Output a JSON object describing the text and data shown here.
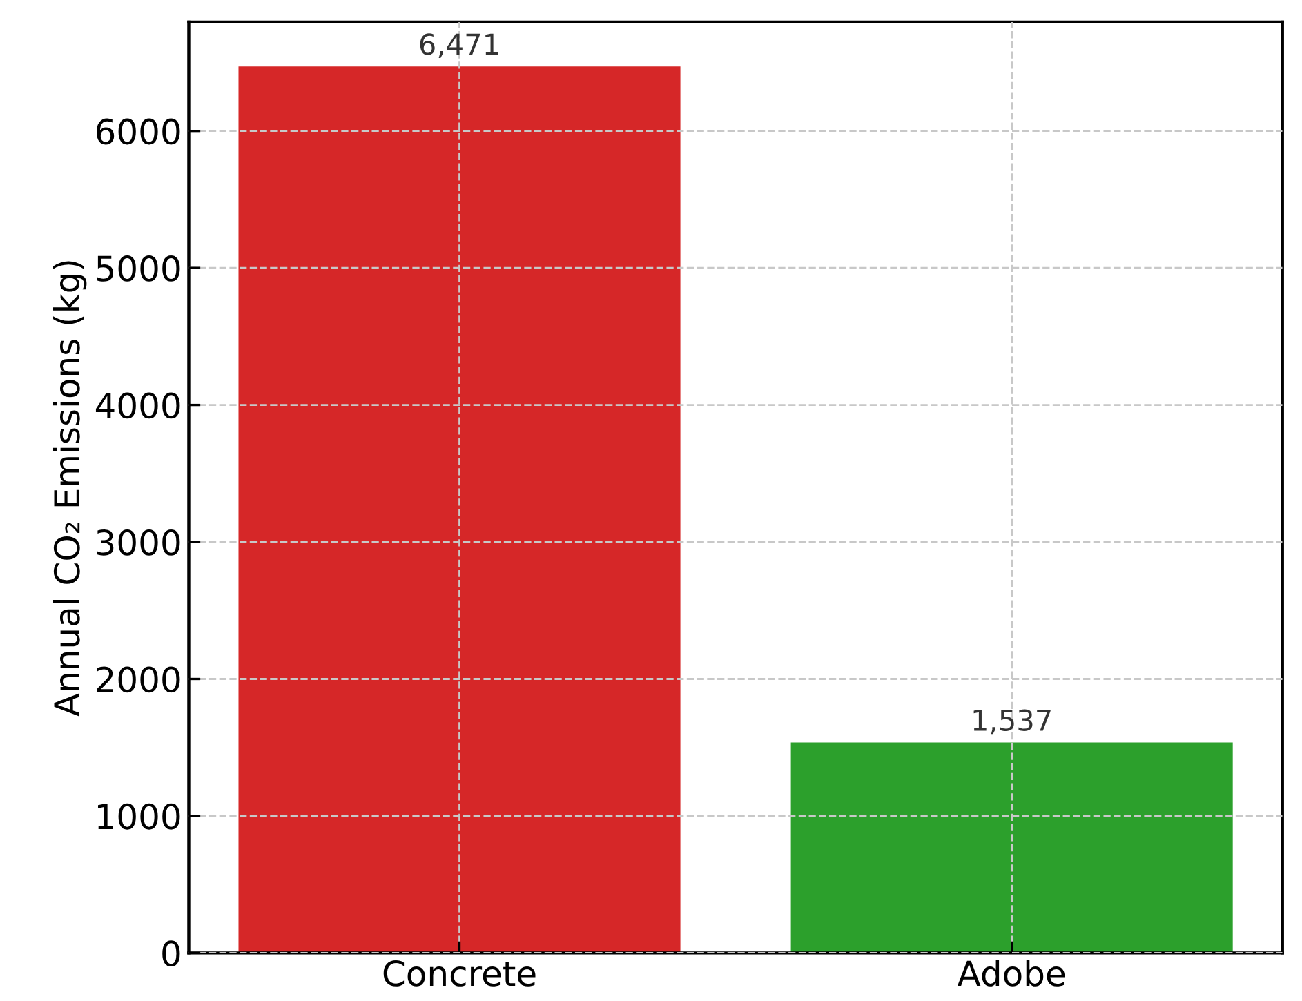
{
  "chart_data": {
    "type": "bar",
    "ylabel": "Annual CO₂ Emissions (kg)",
    "categories": [
      "Concrete",
      "Adobe"
    ],
    "values": [
      6471,
      1537
    ],
    "colors": [
      "#d62728",
      "#2ca02c"
    ],
    "value_labels": [
      "6,471",
      "1,537"
    ],
    "ylim": [
      0,
      6795
    ],
    "yticks": [
      0,
      1000,
      2000,
      3000,
      4000,
      5000,
      6000
    ],
    "grid": true
  }
}
